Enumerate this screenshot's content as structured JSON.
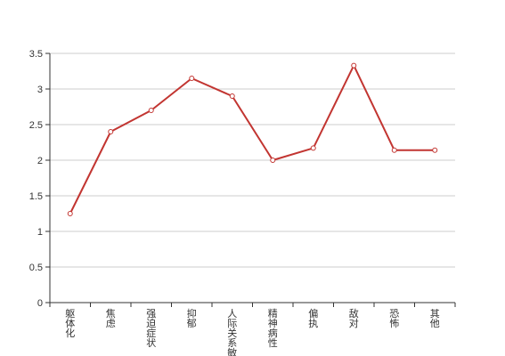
{
  "chart_data": {
    "type": "line",
    "categories": [
      "躯体化",
      "焦虑",
      "强迫症状",
      "抑郁",
      "人际关系敏感",
      "精神病性",
      "偏执",
      "敌对",
      "恐怖",
      "其他"
    ],
    "series": [
      {
        "values": [
          1.25,
          2.4,
          2.7,
          3.15,
          2.9,
          2.0,
          2.17,
          3.33,
          2.14,
          2.14
        ]
      }
    ],
    "ylim": [
      0,
      3.5
    ],
    "yticks": [
      "0",
      "0.5",
      "1",
      "1.5",
      "2",
      "2.5",
      "3",
      "3.5"
    ],
    "grid": true,
    "colors": {
      "line": "#c23531",
      "grid": "#cccccc",
      "axis": "#333333"
    }
  }
}
